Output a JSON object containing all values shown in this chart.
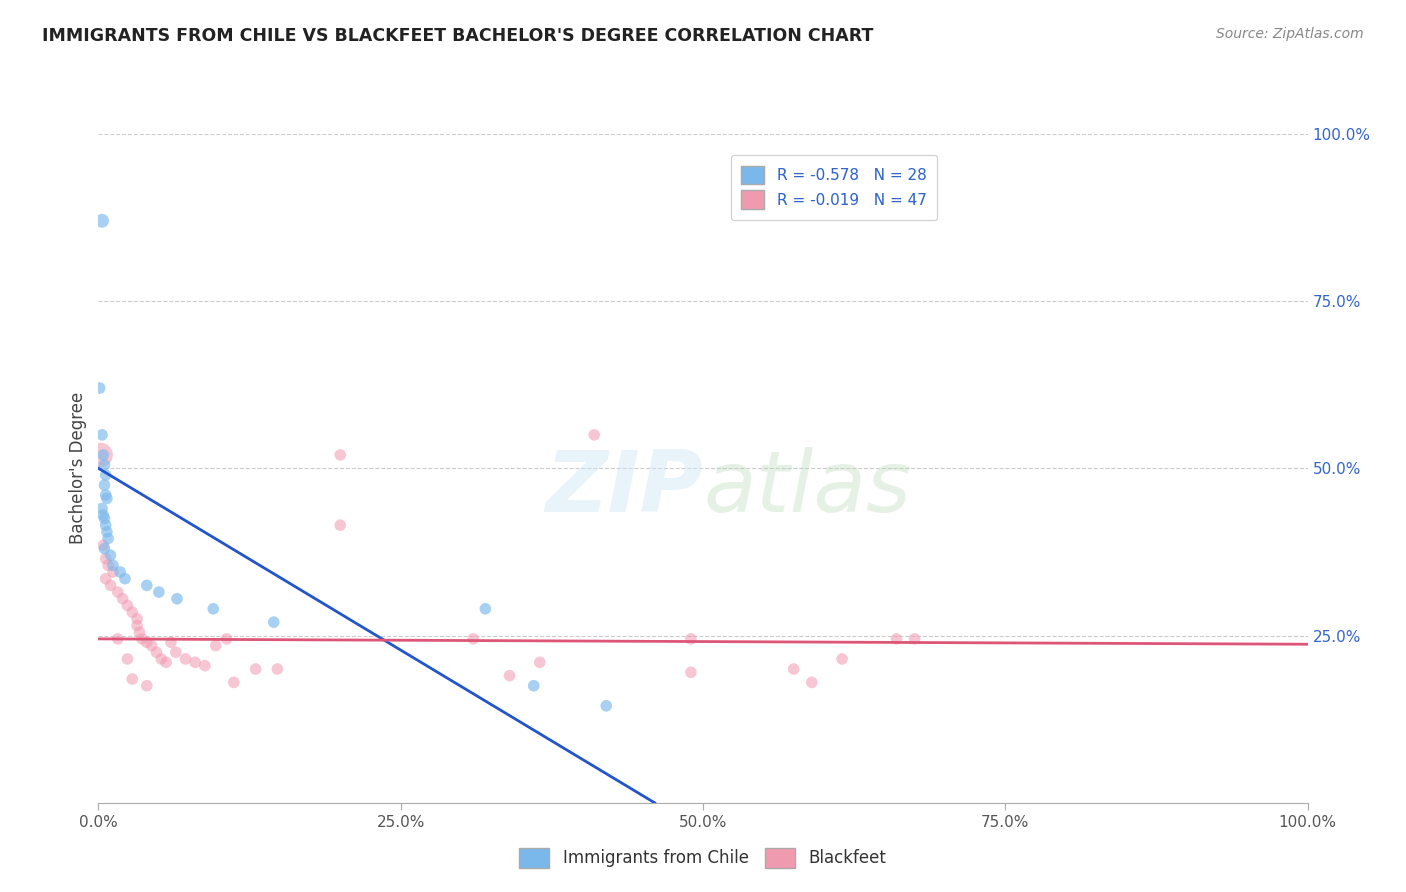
{
  "title": "IMMIGRANTS FROM CHILE VS BLACKFEET BACHELOR'S DEGREE CORRELATION CHART",
  "source": "Source: ZipAtlas.com",
  "ylabel": "Bachelor's Degree",
  "watermark": "ZIPatlas",
  "legend_entries": [
    {
      "label": "R = -0.578   N = 28",
      "color": "#a8c8f0"
    },
    {
      "label": "R = -0.019   N = 47",
      "color": "#f0a8c0"
    }
  ],
  "legend_bottom": [
    {
      "label": "Immigrants from Chile",
      "color": "#a8c8f0"
    },
    {
      "label": "Blackfeet",
      "color": "#f0a8c0"
    }
  ],
  "blue_scatter": [
    [
      0.003,
      0.87
    ],
    [
      0.001,
      0.62
    ],
    [
      0.003,
      0.55
    ],
    [
      0.004,
      0.52
    ],
    [
      0.005,
      0.505
    ],
    [
      0.006,
      0.49
    ],
    [
      0.005,
      0.475
    ],
    [
      0.006,
      0.46
    ],
    [
      0.007,
      0.455
    ],
    [
      0.003,
      0.44
    ],
    [
      0.004,
      0.43
    ],
    [
      0.005,
      0.425
    ],
    [
      0.006,
      0.415
    ],
    [
      0.007,
      0.405
    ],
    [
      0.008,
      0.395
    ],
    [
      0.005,
      0.38
    ],
    [
      0.01,
      0.37
    ],
    [
      0.012,
      0.355
    ],
    [
      0.018,
      0.345
    ],
    [
      0.022,
      0.335
    ],
    [
      0.04,
      0.325
    ],
    [
      0.05,
      0.315
    ],
    [
      0.065,
      0.305
    ],
    [
      0.095,
      0.29
    ],
    [
      0.145,
      0.27
    ],
    [
      0.32,
      0.29
    ],
    [
      0.36,
      0.175
    ],
    [
      0.42,
      0.145
    ]
  ],
  "pink_scatter": [
    [
      0.002,
      0.52
    ],
    [
      0.004,
      0.385
    ],
    [
      0.006,
      0.365
    ],
    [
      0.008,
      0.355
    ],
    [
      0.012,
      0.345
    ],
    [
      0.006,
      0.335
    ],
    [
      0.01,
      0.325
    ],
    [
      0.016,
      0.315
    ],
    [
      0.02,
      0.305
    ],
    [
      0.024,
      0.295
    ],
    [
      0.028,
      0.285
    ],
    [
      0.032,
      0.275
    ],
    [
      0.032,
      0.265
    ],
    [
      0.034,
      0.255
    ],
    [
      0.036,
      0.245
    ],
    [
      0.04,
      0.24
    ],
    [
      0.044,
      0.235
    ],
    [
      0.048,
      0.225
    ],
    [
      0.052,
      0.215
    ],
    [
      0.056,
      0.21
    ],
    [
      0.06,
      0.24
    ],
    [
      0.064,
      0.225
    ],
    [
      0.072,
      0.215
    ],
    [
      0.08,
      0.21
    ],
    [
      0.088,
      0.205
    ],
    [
      0.2,
      0.52
    ],
    [
      0.31,
      0.245
    ],
    [
      0.34,
      0.19
    ],
    [
      0.365,
      0.21
    ],
    [
      0.41,
      0.55
    ],
    [
      0.49,
      0.245
    ],
    [
      0.49,
      0.195
    ],
    [
      0.575,
      0.2
    ],
    [
      0.59,
      0.18
    ],
    [
      0.615,
      0.215
    ],
    [
      0.66,
      0.245
    ],
    [
      0.675,
      0.245
    ],
    [
      0.2,
      0.415
    ],
    [
      0.148,
      0.2
    ],
    [
      0.112,
      0.18
    ],
    [
      0.13,
      0.2
    ],
    [
      0.106,
      0.245
    ],
    [
      0.097,
      0.235
    ],
    [
      0.016,
      0.245
    ],
    [
      0.024,
      0.215
    ],
    [
      0.028,
      0.185
    ],
    [
      0.04,
      0.175
    ]
  ],
  "blue_line": [
    [
      0.0,
      0.5
    ],
    [
      0.46,
      0.0
    ]
  ],
  "pink_line": [
    [
      0.0,
      0.245
    ],
    [
      1.0,
      0.237
    ]
  ],
  "blue_color": "#7ab8ec",
  "pink_color": "#f09ab0",
  "blue_line_color": "#2255cc",
  "pink_line_color": "#dd5577",
  "xlim": [
    0.0,
    1.0
  ],
  "ylim": [
    0.0,
    1.0
  ],
  "xticks": [
    0.0,
    0.25,
    0.5,
    0.75,
    1.0
  ],
  "xticklabels": [
    "0.0%",
    "25.0%",
    "50.0%",
    "75.0%",
    "100.0%"
  ],
  "yticks_right": [
    0.25,
    0.5,
    0.75,
    1.0
  ],
  "yticklabels_right": [
    "25.0%",
    "50.0%",
    "75.0%",
    "100.0%"
  ],
  "grid_yticks": [
    0.25,
    0.5,
    0.75,
    1.0
  ],
  "grid_color": "#cccccc",
  "background_color": "#ffffff",
  "title_color": "#222222",
  "source_color": "#888888",
  "axis_label_color": "#444444",
  "tick_label_color": "#555555",
  "right_tick_color": "#3366cc"
}
